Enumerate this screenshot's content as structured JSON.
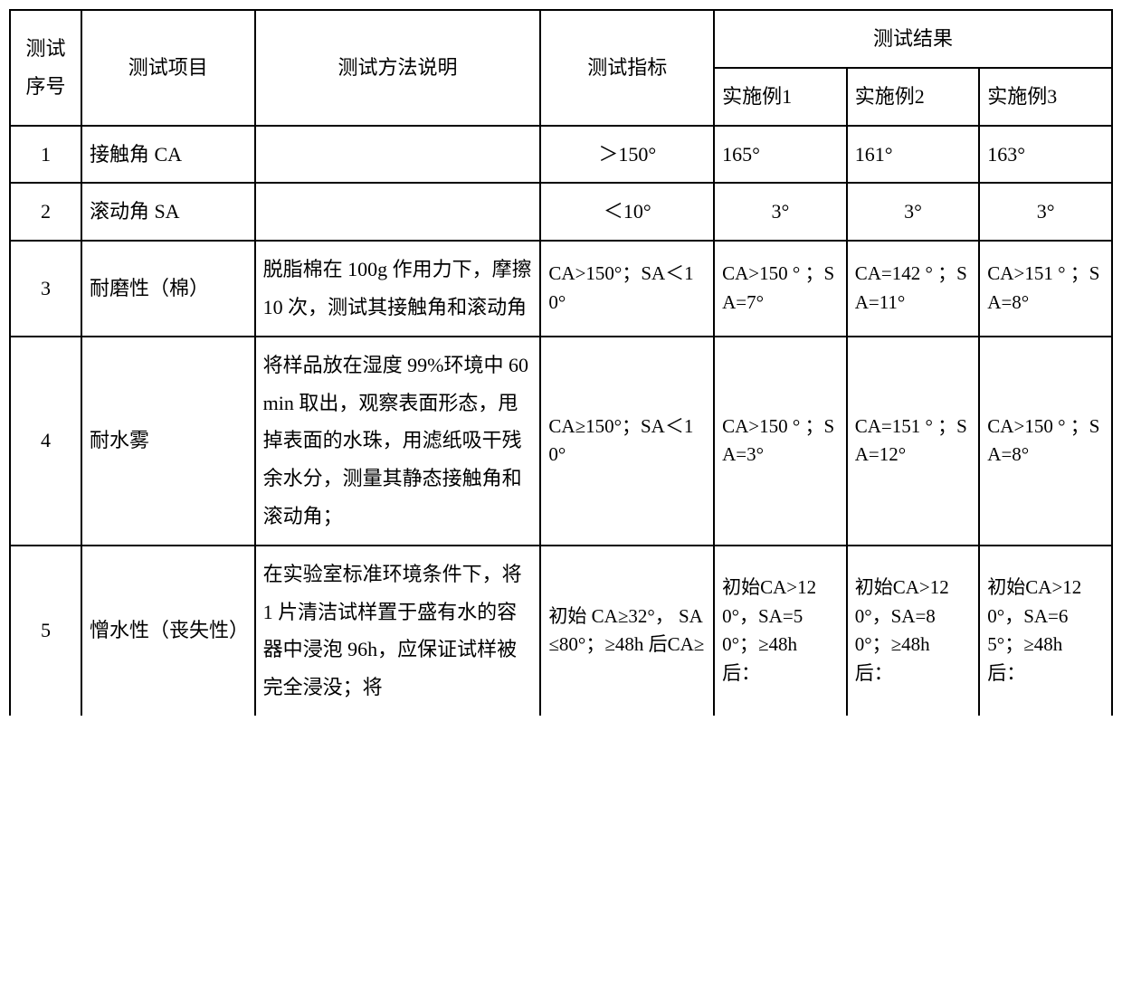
{
  "header": {
    "seq": "测试序号",
    "item": "测试项目",
    "method": "测试方法说明",
    "spec": "测试指标",
    "results_group": "测试结果",
    "r1": "实施例1",
    "r2": "实施例2",
    "r3": "实施例3"
  },
  "rows": [
    {
      "seq": "1",
      "item": "接触角  CA",
      "method": "",
      "spec": "＞150°",
      "r1": "165°",
      "r2": "161°",
      "r3": "163°"
    },
    {
      "seq": "2",
      "item": "滚动角  SA",
      "method": "",
      "spec": "＜10°",
      "r1": "3°",
      "r2": "3°",
      "r3": "3°"
    },
    {
      "seq": "3",
      "item": "耐磨性（棉）",
      "method": "脱脂棉在 100g 作用力下，摩擦 10 次，测试其接触角和滚动角",
      "spec": "CA>150°；SA＜10°",
      "r1": "CA>150 ° ；SA=7°",
      "r2": "CA=142 ° ；SA=11°",
      "r3": "CA>151 ° ；SA=8°"
    },
    {
      "seq": "4",
      "item": "耐水雾",
      "method": "将样品放在湿度 99%环境中 60min 取出，观察表面形态，甩掉表面的水珠，用滤纸吸干残余水分，测量其静态接触角和滚动角；",
      "spec": "CA≥150°；SA＜10°",
      "r1": "CA>150 ° ；SA=3°",
      "r2": "CA=151 ° ；SA=12°",
      "r3": "CA>150 ° ；SA=8°"
    },
    {
      "seq": "5",
      "item": "憎水性（丧失性）",
      "method": "在实验室标准环境条件下，将 1 片清洁试样置于盛有水的容器中浸泡 96h，应保证试样被完全浸没；将",
      "spec": "初始 CA≥32°， SA≤80°；≥48h 后CA≥",
      "r1": "初始CA>120°，SA=50°；≥48h 后：",
      "r2": "初始CA>120°，SA=80°；≥48h 后：",
      "r3": "初始CA>120°，SA=65°；≥48h 后："
    }
  ],
  "style": {
    "border_color": "#000000",
    "background_color": "#ffffff",
    "text_color": "#000000",
    "font_family": "SimSun",
    "base_fontsize": 22,
    "cell_padding": 10,
    "column_widths": {
      "seq": 70,
      "item": 170,
      "method": 280,
      "spec": 170,
      "result": 130
    }
  }
}
